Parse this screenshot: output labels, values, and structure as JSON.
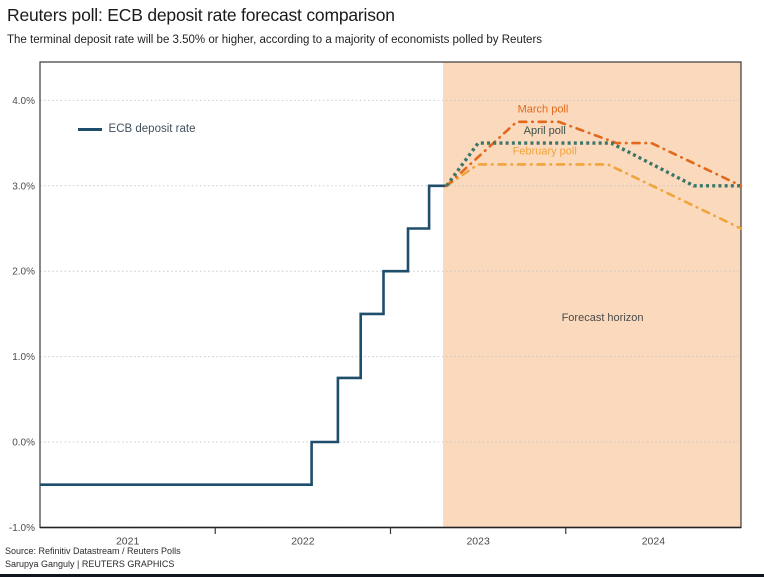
{
  "header": {
    "title": "Reuters poll: ECB deposit rate forecast comparison",
    "subtitle": "The terminal deposit rate will be 3.50% or higher, according to a majority of economists polled by Reuters"
  },
  "footer": {
    "source": "Source: Refinitiv Datastream / Reuters Polls",
    "credit": "Sarupya Ganguly | REUTERS GRAPHICS"
  },
  "chart_data": {
    "type": "line",
    "title": "Reuters poll: ECB deposit rate forecast comparison",
    "x_axis": {
      "range": [
        2021,
        2025
      ],
      "tick_labels": [
        "2021",
        "2022",
        "2023",
        "2024"
      ],
      "label_positions": [
        2021.5,
        2022.5,
        2023.5,
        2024.5
      ],
      "boundary_ticks": [
        2022,
        2023,
        2024
      ]
    },
    "y_axis": {
      "unit": "%",
      "tick_labels": [
        "4.0%",
        "3.0%",
        "2.0%",
        "1.0%",
        "0.0%",
        "-1.0%"
      ],
      "tick_values": [
        4,
        3,
        2,
        1,
        0,
        -1
      ],
      "range": [
        -1.0,
        4.45
      ],
      "grid": "dotted"
    },
    "forecast_region": {
      "start": 2023.3,
      "end": 2025.0,
      "label": "Forecast horizon",
      "color": "#fbd9bd"
    },
    "series": [
      {
        "name": "ECB deposit rate",
        "color": "#1f4e6d",
        "style": "solid",
        "points": [
          [
            2021.0,
            -0.5
          ],
          [
            2022.55,
            -0.5
          ],
          [
            2022.55,
            0.0
          ],
          [
            2022.7,
            0.0
          ],
          [
            2022.7,
            0.75
          ],
          [
            2022.83,
            0.75
          ],
          [
            2022.83,
            1.5
          ],
          [
            2022.96,
            1.5
          ],
          [
            2022.96,
            2.0
          ],
          [
            2023.1,
            2.0
          ],
          [
            2023.1,
            2.5
          ],
          [
            2023.22,
            2.5
          ],
          [
            2023.22,
            3.0
          ],
          [
            2023.32,
            3.0
          ]
        ]
      },
      {
        "name": "February poll",
        "color": "#f2a43c",
        "style": "dash-dot",
        "points": [
          [
            2023.32,
            3.0
          ],
          [
            2023.5,
            3.25
          ],
          [
            2024.24,
            3.25
          ],
          [
            2025.0,
            2.5
          ]
        ]
      },
      {
        "name": "March poll",
        "color": "#e2691c",
        "style": "dash-dot",
        "points": [
          [
            2023.32,
            3.0
          ],
          [
            2023.72,
            3.75
          ],
          [
            2023.96,
            3.75
          ],
          [
            2024.29,
            3.5
          ],
          [
            2024.49,
            3.5
          ],
          [
            2025.0,
            3.0
          ]
        ]
      },
      {
        "name": "April poll",
        "color": "#3c7668",
        "style": "dotted",
        "points": [
          [
            2023.32,
            3.0
          ],
          [
            2023.5,
            3.5
          ],
          [
            2024.26,
            3.5
          ],
          [
            2024.73,
            3.0
          ],
          [
            2025.0,
            3.0
          ]
        ]
      }
    ],
    "annotations": [
      {
        "text": "March poll",
        "x": 2023.87,
        "y": 3.9,
        "color": "#e2691c"
      },
      {
        "text": "April poll",
        "x": 2023.88,
        "y": 3.65,
        "color": "#3d5049"
      },
      {
        "text": "February poll",
        "x": 2023.88,
        "y": 3.41,
        "color": "#f2a43c"
      },
      {
        "text": "Forecast horizon",
        "x": 2024.21,
        "y": 1.46,
        "color": "#4a4a4a"
      }
    ],
    "legend_position": {
      "x": 2021.22,
      "y": 3.65
    }
  }
}
